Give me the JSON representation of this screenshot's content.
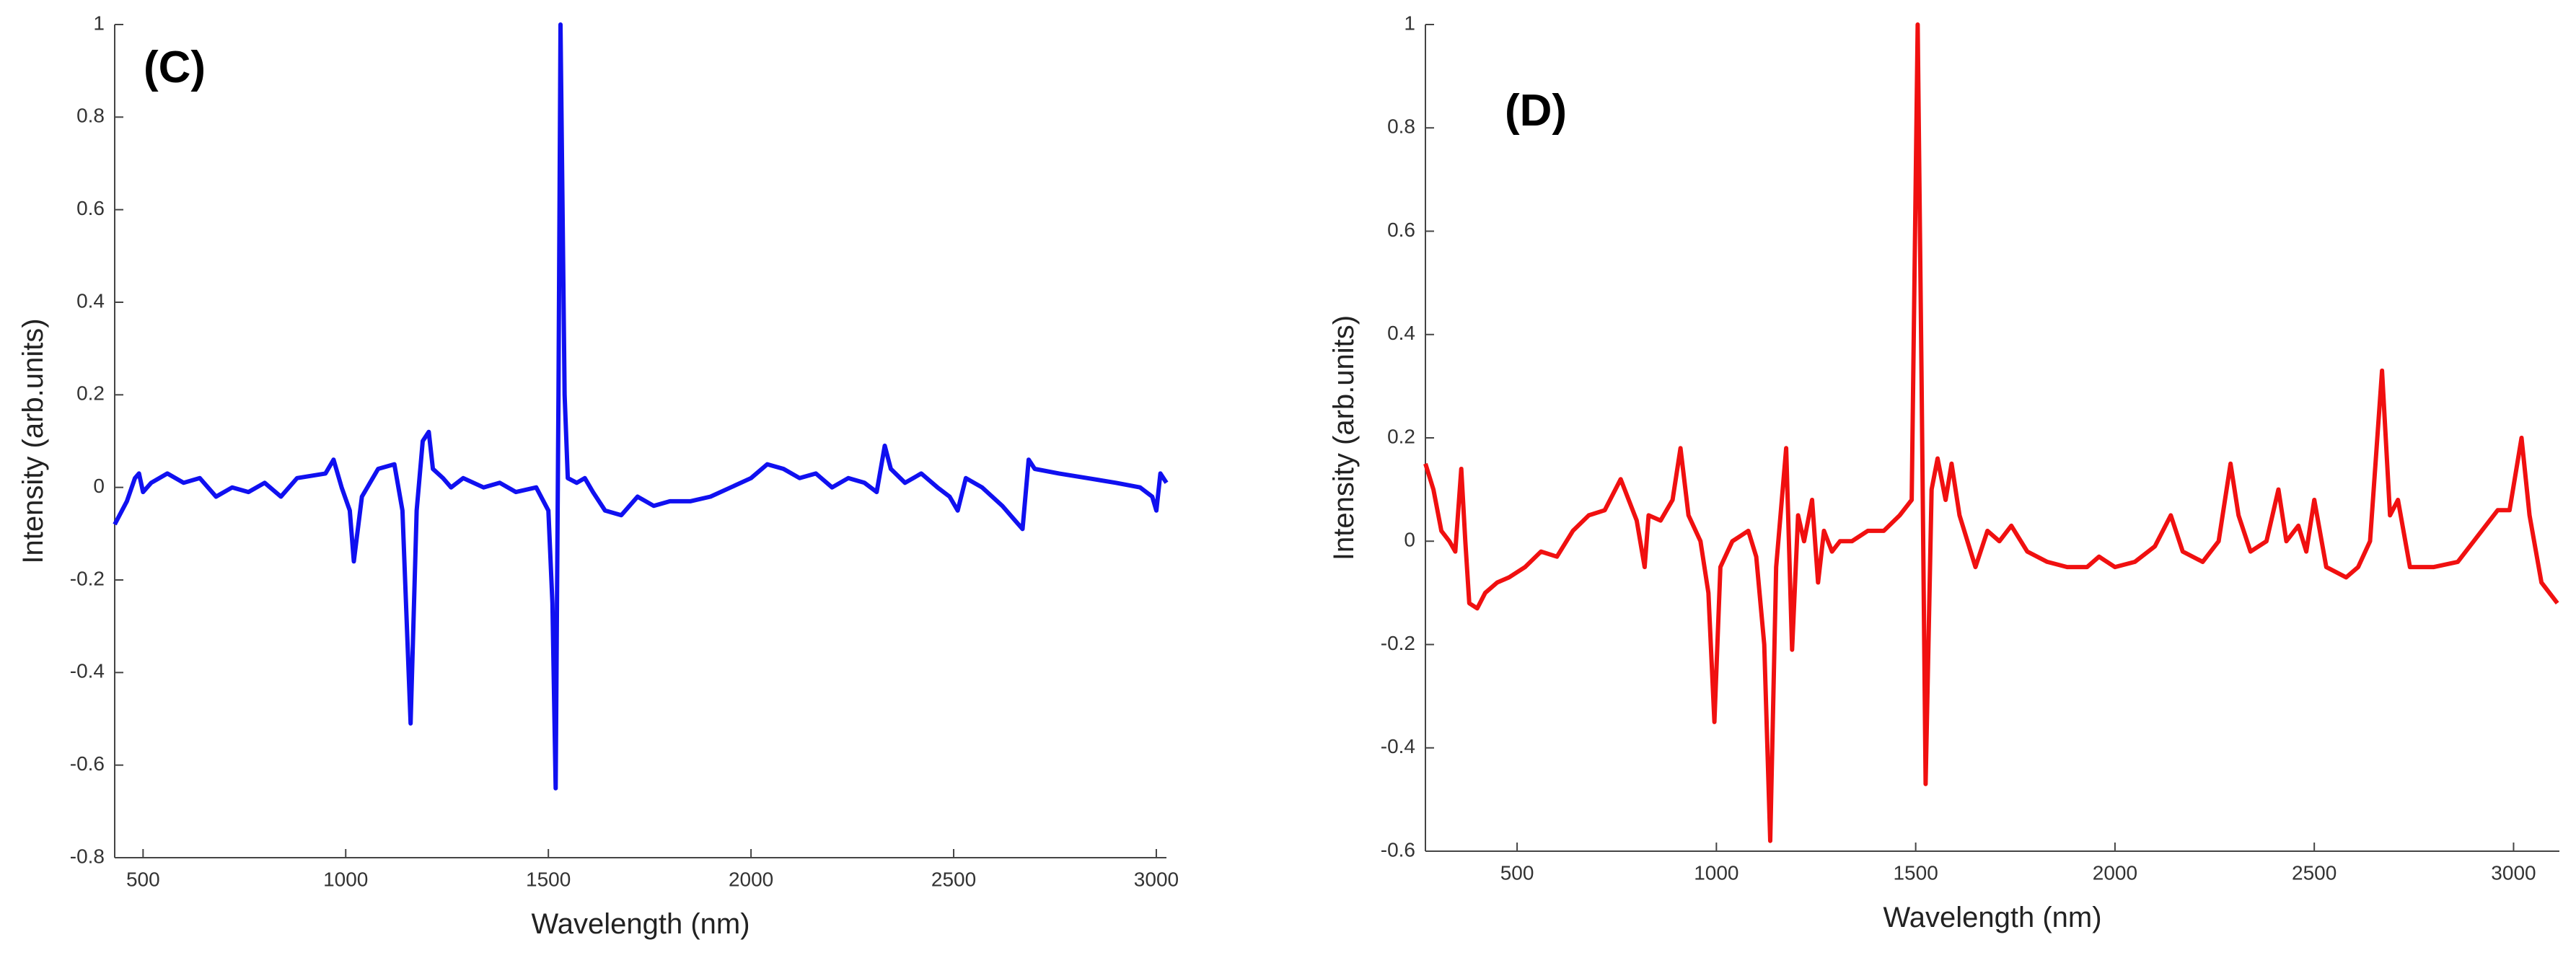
{
  "chart_data": [
    {
      "type": "line",
      "title": "(C)",
      "xlabel": "Wavelength (nm)",
      "ylabel": "Intensity (arb.units)",
      "xlim": [
        430,
        3025
      ],
      "xticks": [
        500,
        1000,
        1500,
        2000,
        2500,
        3000
      ],
      "ylim": [
        -0.8,
        1
      ],
      "yticks": [
        -0.8,
        -0.6,
        -0.4,
        -0.2,
        0,
        0.2,
        0.4,
        0.6,
        0.8,
        1
      ],
      "x": [
        430,
        460,
        480,
        490,
        500,
        520,
        560,
        600,
        640,
        680,
        720,
        760,
        800,
        840,
        880,
        950,
        970,
        990,
        1010,
        1020,
        1040,
        1080,
        1120,
        1140,
        1160,
        1175,
        1190,
        1205,
        1215,
        1240,
        1260,
        1290,
        1340,
        1380,
        1420,
        1470,
        1500,
        1510,
        1518,
        1525,
        1530,
        1540,
        1548,
        1570,
        1590,
        1610,
        1640,
        1680,
        1720,
        1760,
        1800,
        1850,
        1900,
        1950,
        2000,
        2040,
        2080,
        2120,
        2160,
        2200,
        2240,
        2280,
        2310,
        2330,
        2345,
        2380,
        2420,
        2460,
        2490,
        2510,
        2530,
        2570,
        2620,
        2650,
        2670,
        2685,
        2700,
        2760,
        2830,
        2900,
        2960,
        2990,
        3000,
        3010,
        3025
      ],
      "series": [
        {
          "name": "C",
          "color": "#1010f0",
          "values": [
            -0.08,
            -0.03,
            0.02,
            0.03,
            -0.01,
            0.01,
            0.03,
            0.01,
            0.02,
            -0.02,
            0.0,
            -0.01,
            0.01,
            -0.02,
            0.02,
            0.03,
            0.06,
            0.0,
            -0.05,
            -0.16,
            -0.02,
            0.04,
            0.05,
            -0.05,
            -0.51,
            -0.05,
            0.1,
            0.12,
            0.04,
            0.02,
            0.0,
            0.02,
            0.0,
            0.01,
            -0.01,
            0.0,
            -0.05,
            -0.25,
            -0.65,
            0.2,
            1.0,
            0.2,
            0.02,
            0.01,
            0.02,
            -0.01,
            -0.05,
            -0.06,
            -0.02,
            -0.04,
            -0.03,
            -0.03,
            -0.02,
            0.0,
            0.02,
            0.05,
            0.04,
            0.02,
            0.03,
            0.0,
            0.02,
            0.01,
            -0.01,
            0.09,
            0.04,
            0.01,
            0.03,
            0.0,
            -0.02,
            -0.05,
            0.02,
            0.0,
            -0.04,
            -0.07,
            -0.09,
            0.06,
            0.04,
            0.03,
            0.02,
            0.01,
            0.0,
            -0.02,
            -0.05,
            0.03,
            0.01
          ]
        }
      ]
    },
    {
      "type": "line",
      "title": "(D)",
      "xlabel": "Wavelength (nm)",
      "ylabel": "Intensity (arb.units)",
      "xlim": [
        270,
        3115
      ],
      "xticks": [
        500,
        1000,
        1500,
        2000,
        2500,
        3000
      ],
      "ylim": [
        -0.6,
        1
      ],
      "yticks": [
        -0.6,
        -0.4,
        -0.2,
        0,
        0.2,
        0.4,
        0.6,
        0.8,
        1
      ],
      "x": [
        270,
        290,
        310,
        330,
        345,
        360,
        370,
        380,
        400,
        420,
        450,
        480,
        520,
        560,
        600,
        640,
        680,
        720,
        760,
        780,
        800,
        820,
        830,
        860,
        890,
        910,
        930,
        960,
        980,
        995,
        1010,
        1040,
        1080,
        1100,
        1120,
        1135,
        1150,
        1175,
        1190,
        1205,
        1220,
        1240,
        1255,
        1270,
        1290,
        1310,
        1340,
        1380,
        1420,
        1460,
        1490,
        1505,
        1515,
        1525,
        1540,
        1555,
        1575,
        1590,
        1610,
        1650,
        1680,
        1710,
        1740,
        1780,
        1830,
        1880,
        1930,
        1960,
        2000,
        2050,
        2100,
        2140,
        2170,
        2220,
        2260,
        2290,
        2310,
        2340,
        2380,
        2410,
        2430,
        2460,
        2480,
        2500,
        2530,
        2580,
        2610,
        2640,
        2670,
        2690,
        2710,
        2740,
        2800,
        2860,
        2900,
        2960,
        2990,
        3020,
        3040,
        3070,
        3110
      ],
      "series": [
        {
          "name": "D",
          "color": "#f01010",
          "values": [
            0.15,
            0.1,
            0.02,
            0.0,
            -0.02,
            0.14,
            0.0,
            -0.12,
            -0.13,
            -0.1,
            -0.08,
            -0.07,
            -0.05,
            -0.02,
            -0.03,
            0.02,
            0.05,
            0.06,
            0.12,
            0.08,
            0.04,
            -0.05,
            0.05,
            0.04,
            0.08,
            0.18,
            0.05,
            0.0,
            -0.1,
            -0.35,
            -0.05,
            0.0,
            0.02,
            -0.03,
            -0.2,
            -0.58,
            -0.05,
            0.18,
            -0.21,
            0.05,
            0.0,
            0.08,
            -0.08,
            0.02,
            -0.02,
            0.0,
            0.0,
            0.02,
            0.02,
            0.05,
            0.08,
            1.0,
            0.3,
            -0.47,
            0.1,
            0.16,
            0.08,
            0.15,
            0.05,
            -0.05,
            0.02,
            0.0,
            0.03,
            -0.02,
            -0.04,
            -0.05,
            -0.05,
            -0.03,
            -0.05,
            -0.04,
            -0.01,
            0.05,
            -0.02,
            -0.04,
            0.0,
            0.15,
            0.05,
            -0.02,
            0.0,
            0.1,
            0.0,
            0.03,
            -0.02,
            0.08,
            -0.05,
            -0.07,
            -0.05,
            0.0,
            0.33,
            0.05,
            0.08,
            -0.05,
            -0.05,
            -0.04,
            0.0,
            0.06,
            0.06,
            0.2,
            0.05,
            -0.08,
            -0.12
          ]
        }
      ]
    }
  ]
}
